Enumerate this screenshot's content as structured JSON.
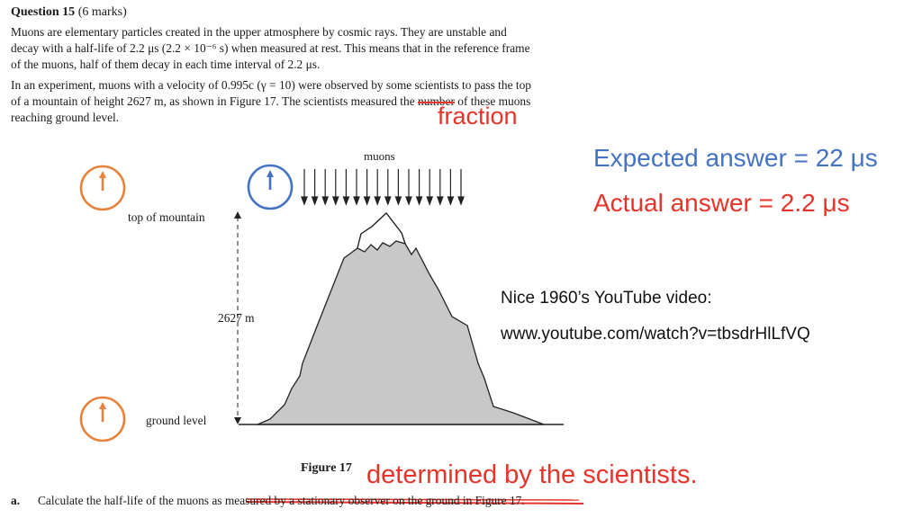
{
  "question": {
    "title": "Question 15",
    "marks": "(6 marks)",
    "para1_line1": "Muons are elementary particles created in the upper atmosphere by cosmic rays. They are unstable and",
    "para1_line2": "decay with a half-life of 2.2 μs (2.2 × 10⁻⁶ s) when measured at rest. This means that in the reference frame",
    "para1_line3": "of the muons, half of them decay in each time interval of 2.2 μs.",
    "para2_line1": "In an experiment, muons with a velocity of 0.995c (γ = 10) were observed by some scientists to pass the top",
    "para2_line2_before": "of a mountain of height 2627 m, as shown in Figure 17. The scientists measured the",
    "para2_line2_struck": "number",
    "para2_line2_after": "of these muons",
    "para2_line3": "reaching ground level."
  },
  "annotations": {
    "fraction": "fraction",
    "expected": "Expected answer = 22 μs",
    "actual": "Actual answer = 2.2 μs",
    "video_line1": "Nice 1960’s YouTube video:",
    "video_line2": "www.youtube.com/watch?v=tbsdrHlLfVQ",
    "determined": "determined by the scientists.",
    "colors": {
      "red": "#e8332a",
      "blue": "#4472c4",
      "orange": "#e8823a"
    }
  },
  "figure": {
    "muons_label": "muons",
    "top_label": "top of mountain",
    "height_label": "2627 m",
    "ground_label": "ground level",
    "caption": "Figure 17"
  },
  "part_a": {
    "letter": "a.",
    "text_before": "Calculate the half-life of the muons as",
    "text_struck": "measured by a stationary observer on the ground in Figure 17."
  }
}
